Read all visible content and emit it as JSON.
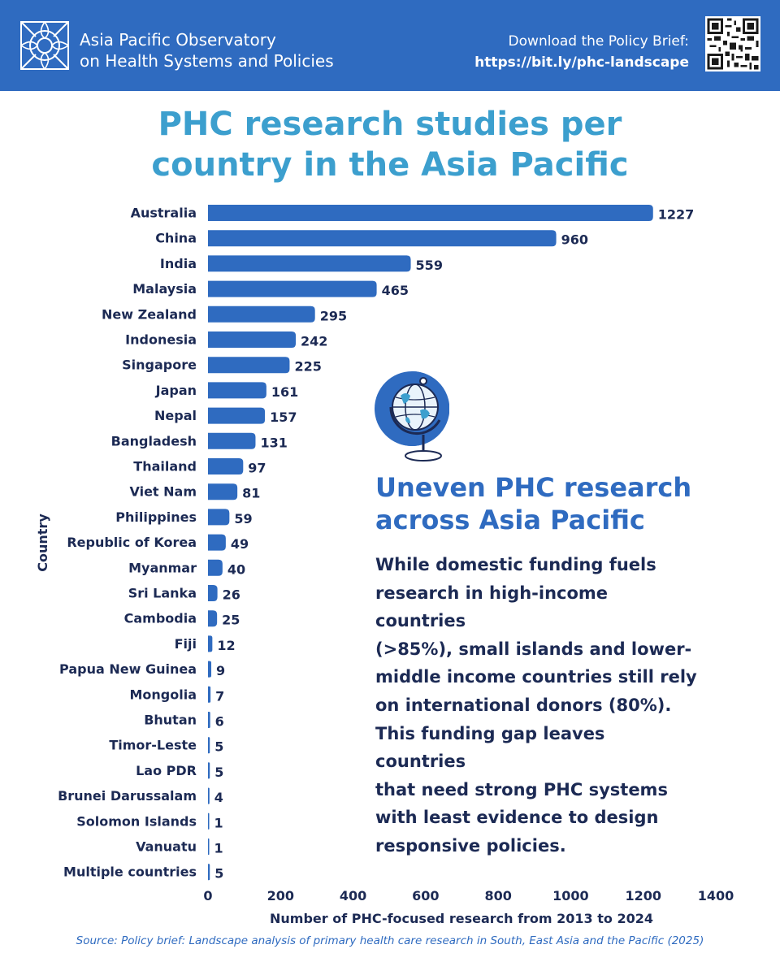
{
  "header": {
    "org_line1": "Asia Pacific Observatory",
    "org_line2": "on Health Systems and Policies",
    "download_label": "Download the Policy Brief:",
    "download_url": "https://bit.ly/phc-landscape",
    "background_color": "#2f6bc0"
  },
  "title": {
    "line1": "PHC research studies per",
    "line2": "country in the Asia Pacific",
    "color": "#3c9fce"
  },
  "callout": {
    "icon": "globe-icon",
    "title_line1": "Uneven PHC research",
    "title_line2": "across Asia Pacific",
    "body_lines": [
      "While domestic funding fuels",
      "research in high-income countries",
      "(>85%), small islands and lower-",
      "middle income countries still rely",
      "on international donors (80%).",
      "This funding gap leaves countries",
      "that need strong PHC systems",
      "with least evidence to design",
      "responsive policies."
    ]
  },
  "source": "Source: Policy brief: Landscape analysis of primary health care research in South, East Asia and the Pacific (2025)",
  "chart_data": {
    "type": "bar",
    "orientation": "horizontal",
    "bar_color": "#2f6bc0",
    "categories": [
      "Australia",
      "China",
      "India",
      "Malaysia",
      "New Zealand",
      "Indonesia",
      "Singapore",
      "Japan",
      "Nepal",
      "Bangladesh",
      "Thailand",
      "Viet Nam",
      "Philippines",
      "Republic of Korea",
      "Myanmar",
      "Sri Lanka",
      "Cambodia",
      "Fiji",
      "Papua New Guinea",
      "Mongolia",
      "Bhutan",
      "Timor-Leste",
      "Lao PDR",
      "Brunei Darussalam",
      "Solomon Islands",
      "Vanuatu",
      "Multiple countries"
    ],
    "values": [
      1227,
      960,
      559,
      465,
      295,
      242,
      225,
      161,
      157,
      131,
      97,
      81,
      59,
      49,
      40,
      26,
      25,
      12,
      9,
      7,
      6,
      5,
      5,
      4,
      1,
      1,
      5
    ],
    "xlabel": "Number of PHC-focused research from 2013 to 2024",
    "ylabel": "Country",
    "xlim": [
      0,
      1400
    ],
    "xticks": [
      0,
      200,
      400,
      600,
      800,
      1000,
      1200,
      1400
    ],
    "grid": false,
    "data_labels": true
  }
}
